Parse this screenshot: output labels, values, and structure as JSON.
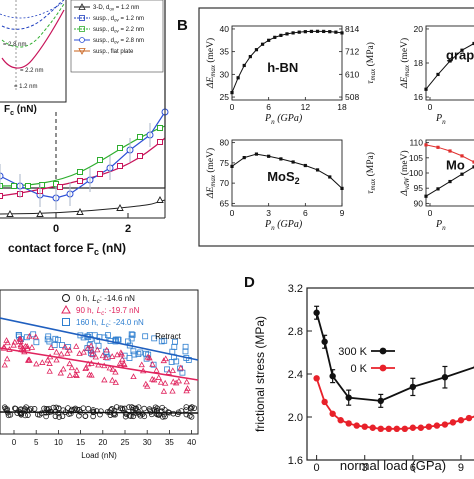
{
  "panels": {
    "a": {
      "xlabel": "contact force F",
      "xlabel_sub": "c",
      "xlabel_unit": "(nN)",
      "xticks": [
        "0",
        "2"
      ],
      "inset": {
        "xlabel": "F",
        "xlabel_sub": "c",
        "xlabel_unit": " (nN)",
        "labels": [
          "= 2.8 nm",
          "= 2.2 nm",
          "= 1.2 nm"
        ]
      },
      "legend": [
        {
          "label": "3-D, d",
          "sub": "ov",
          "rest": " = 1.2 nm",
          "color": "#222222",
          "marker": "triangle"
        },
        {
          "label": "susp., d",
          "sub": "ov",
          "rest": " = 1.2 nm",
          "color": "#1f3fbf",
          "marker": "square"
        },
        {
          "label": "susp., d",
          "sub": "ov",
          "rest": " = 2.2 nm",
          "color": "#2fae2f",
          "marker": "square"
        },
        {
          "label": "susp., d",
          "sub": "ov",
          "rest": " = 2.8 nm",
          "color": "#2c4fd6",
          "marker": "circle"
        },
        {
          "label": "susp., flat plate",
          "sub": "",
          "rest": "",
          "color": "#c8601a",
          "marker": "triangle-down"
        }
      ]
    },
    "b": {
      "letter": "B",
      "subpanels": [
        {
          "material": "h-BN",
          "ylabel": "ΔE",
          "ylabel_sub": "max",
          "ylabel_unit": " (meV)",
          "yticks": [
            "25",
            "30",
            "35",
            "40"
          ],
          "y2label": "τ",
          "y2label_sub": "max",
          "y2label_unit": " (MPa)",
          "y2ticks": [
            "814",
            "712",
            "610",
            "508"
          ],
          "xlabel": "P",
          "xlabel_sub": "n",
          "xlabel_unit": " (GPa)",
          "xticks": [
            "0",
            "6",
            "12",
            "18"
          ]
        },
        {
          "material": "graph",
          "ylabel": "ΔE",
          "ylabel_sub": "max",
          "ylabel_unit": " (meV)",
          "yticks": [
            "16",
            "18",
            "20"
          ],
          "xlabel": "P",
          "xlabel_sub": "n",
          "xticks": [
            "0"
          ]
        },
        {
          "material": "MoS",
          "material_sub": "2",
          "ylabel": "ΔE",
          "ylabel_sub": "max",
          "ylabel_unit": " (meV)",
          "yticks": [
            "65",
            "70",
            "75",
            "80"
          ],
          "y2label": "τ",
          "y2label_sub": "max",
          "y2label_unit": " (MPa)",
          "xlabel": "P",
          "xlabel_sub": "n",
          "xlabel_unit": " (GPa)",
          "xticks": [
            "0",
            "3",
            "6",
            "9"
          ]
        },
        {
          "material": "Mo",
          "ylabel": "Δ",
          "ylabel_sub": "vdW",
          "ylabel_unit": " (meV)",
          "yticks": [
            "90",
            "95",
            "100",
            "105",
            "110"
          ],
          "xlabel": "P",
          "xlabel_sub": "n",
          "xticks": [
            "0"
          ]
        }
      ]
    },
    "c": {
      "xlabel": "Load (nN)",
      "xticks": [
        "0",
        "5",
        "10",
        "15",
        "20",
        "25",
        "30",
        "35",
        "40"
      ],
      "legend": [
        {
          "time": "0 h,",
          "lc": "L",
          "lc_sub": "c",
          "value": ": -14.6 nN",
          "color": "#1a1a1a",
          "marker": "circle"
        },
        {
          "time": "90 h,",
          "lc": "L",
          "lc_sub": "c",
          "value": ": -19.7 nN",
          "color": "#e0245e",
          "marker": "triangle"
        },
        {
          "time": "160 h,",
          "lc": "L",
          "lc_sub": "c",
          "value": ": -24.0 nN",
          "color": "#2f7fd0",
          "marker": "square"
        }
      ],
      "annotation": "Retract"
    },
    "d": {
      "letter": "D",
      "xlabel": "normal load (GPa)",
      "ylabel": "frictional stress (MPa)",
      "xticks": [
        "0",
        "3",
        "6",
        "9"
      ],
      "yticks": [
        "1.6",
        "2.0",
        "2.4",
        "2.8",
        "3.2"
      ]
    }
  },
  "chart_data": [
    {
      "panel": "B-hBN",
      "type": "line",
      "x": [
        0,
        1,
        2,
        3,
        4,
        5,
        6,
        7,
        8,
        9,
        10,
        11,
        12,
        13,
        14,
        15,
        16,
        17,
        18
      ],
      "values": [
        26.5,
        29.5,
        32,
        33.8,
        35.2,
        36.3,
        37.1,
        37.7,
        38.1,
        38.4,
        38.6,
        38.75,
        38.85,
        38.9,
        38.92,
        38.9,
        38.85,
        38.75,
        38.6
      ],
      "xlabel": "Pn (GPa)",
      "ylabel": "ΔEmax (meV)",
      "xlim": [
        0,
        18
      ],
      "ylim": [
        25,
        40
      ]
    },
    {
      "panel": "B-graphene",
      "type": "line",
      "x": [
        0,
        1,
        2,
        3,
        4,
        5
      ],
      "values": [
        15.8,
        16.9,
        17.9,
        18.7,
        19.2,
        19.5
      ],
      "xlabel": "Pn",
      "ylabel": "ΔEmax (meV)",
      "xlim": [
        0,
        5
      ],
      "ylim": [
        15,
        20.5
      ]
    },
    {
      "panel": "B-MoS2",
      "type": "line",
      "x": [
        0,
        1,
        2,
        3,
        4,
        5,
        6,
        7,
        8,
        9
      ],
      "values": [
        74,
        76,
        76.8,
        76.3,
        75.7,
        75,
        74.2,
        73.2,
        71.6,
        69
      ],
      "xlabel": "Pn (GPa)",
      "ylabel": "ΔEmax (meV)",
      "xlim": [
        0,
        9
      ],
      "ylim": [
        65,
        80
      ]
    },
    {
      "panel": "B-Mo",
      "type": "line",
      "x": [
        0,
        1,
        2,
        3,
        4,
        5
      ],
      "series": [
        {
          "values": [
            89,
            92,
            95,
            98,
            101,
            104
          ],
          "color": "#111111"
        },
        {
          "values": [
            110,
            109,
            107.5,
            105.5,
            103,
            100
          ],
          "color": "#e0302f"
        }
      ],
      "xlabel": "Pn",
      "ylabel": "ΔvdW (meV)",
      "xlim": [
        0,
        5
      ],
      "ylim": [
        85,
        112
      ]
    },
    {
      "panel": "D",
      "type": "line",
      "xlabel": "normal load (GPa)",
      "ylabel": "frictional stress (MPa)",
      "xlim": [
        -0.6,
        10
      ],
      "ylim": [
        1.6,
        3.2
      ],
      "series": [
        {
          "name": "300 K",
          "color": "#111111",
          "x": [
            0,
            0.5,
            1,
            2,
            4,
            6,
            8,
            10
          ],
          "values": [
            2.97,
            2.7,
            2.38,
            2.18,
            2.15,
            2.28,
            2.37,
            2.47
          ],
          "errors": [
            0.06,
            0.06,
            0.06,
            0.07,
            0.06,
            0.08,
            0.1,
            0.12
          ]
        },
        {
          "name": "0 K",
          "color": "#e8212a",
          "x": [
            0,
            0.5,
            1,
            1.5,
            2,
            2.5,
            3,
            3.5,
            4,
            4.5,
            5,
            5.5,
            6,
            6.5,
            7,
            7.5,
            8,
            8.5,
            9,
            9.5,
            10
          ],
          "values": [
            2.36,
            2.14,
            2.03,
            1.97,
            1.94,
            1.92,
            1.91,
            1.9,
            1.89,
            1.89,
            1.89,
            1.89,
            1.9,
            1.9,
            1.91,
            1.92,
            1.93,
            1.95,
            1.97,
            1.99,
            2.01
          ]
        }
      ]
    }
  ]
}
